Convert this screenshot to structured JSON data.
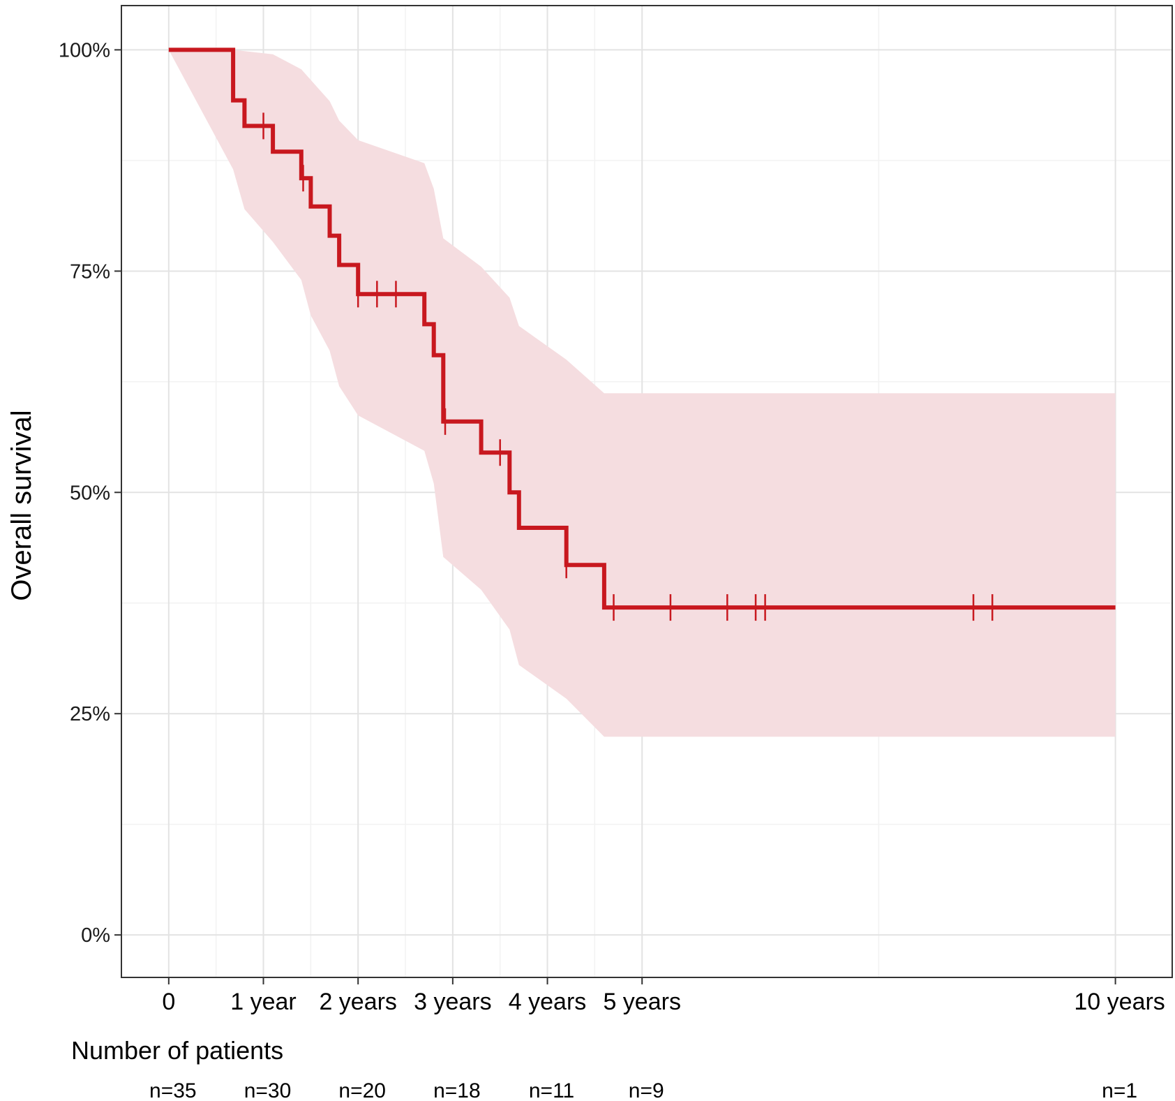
{
  "chart_data": {
    "type": "line",
    "title": "",
    "ylabel": "Overall survival",
    "xlabel": "",
    "xlim": [
      -0.5,
      10.6
    ],
    "ylim": [
      -0.048,
      1.05
    ],
    "grid": true,
    "y_ticks": [
      {
        "value": 0,
        "label": "0%"
      },
      {
        "value": 0.25,
        "label": "25%"
      },
      {
        "value": 0.5,
        "label": "50%"
      },
      {
        "value": 0.75,
        "label": "75%"
      },
      {
        "value": 1,
        "label": "100%"
      }
    ],
    "y_minor_ticks": [
      0.125,
      0.375,
      0.625,
      0.875
    ],
    "x_ticks": [
      {
        "value": 0,
        "label": "0"
      },
      {
        "value": 1,
        "label": "1 year"
      },
      {
        "value": 2,
        "label": "2 years"
      },
      {
        "value": 3,
        "label": "3 years"
      },
      {
        "value": 4,
        "label": "4 years"
      },
      {
        "value": 5,
        "label": "5 years"
      },
      {
        "value": 10,
        "label": "10 years"
      }
    ],
    "x_minor_ticks": [
      0.5,
      1.5,
      2.5,
      3.5,
      4.5,
      7.5
    ],
    "series": [
      {
        "color": "#c8181f",
        "band_color": "#f5dde0",
        "steps": [
          {
            "x": 0,
            "y": 1.0
          },
          {
            "x": 0.68,
            "y": 0.943
          },
          {
            "x": 0.8,
            "y": 0.914
          },
          {
            "x": 1.1,
            "y": 0.885
          },
          {
            "x": 1.4,
            "y": 0.855
          },
          {
            "x": 1.5,
            "y": 0.823
          },
          {
            "x": 1.7,
            "y": 0.79
          },
          {
            "x": 1.8,
            "y": 0.757
          },
          {
            "x": 2.0,
            "y": 0.724
          },
          {
            "x": 2.7,
            "y": 0.69
          },
          {
            "x": 2.8,
            "y": 0.655
          },
          {
            "x": 2.9,
            "y": 0.58
          },
          {
            "x": 3.3,
            "y": 0.545
          },
          {
            "x": 3.6,
            "y": 0.5
          },
          {
            "x": 3.7,
            "y": 0.46
          },
          {
            "x": 4.2,
            "y": 0.418
          },
          {
            "x": 4.6,
            "y": 0.37
          }
        ],
        "end_x": 10,
        "censored": [
          {
            "x": 1.0,
            "y": 0.914
          },
          {
            "x": 1.42,
            "y": 0.855
          },
          {
            "x": 2.0,
            "y": 0.724
          },
          {
            "x": 2.2,
            "y": 0.724
          },
          {
            "x": 2.4,
            "y": 0.724
          },
          {
            "x": 2.92,
            "y": 0.58
          },
          {
            "x": 3.5,
            "y": 0.545
          },
          {
            "x": 4.2,
            "y": 0.418
          },
          {
            "x": 4.7,
            "y": 0.37
          },
          {
            "x": 5.3,
            "y": 0.37
          },
          {
            "x": 5.9,
            "y": 0.37
          },
          {
            "x": 6.2,
            "y": 0.37
          },
          {
            "x": 6.3,
            "y": 0.37
          },
          {
            "x": 8.5,
            "y": 0.37
          },
          {
            "x": 8.7,
            "y": 0.37
          }
        ],
        "ci_upper": [
          {
            "x": 0,
            "y": 1.0
          },
          {
            "x": 0.68,
            "y": 1.0
          },
          {
            "x": 1.1,
            "y": 0.995
          },
          {
            "x": 1.4,
            "y": 0.978
          },
          {
            "x": 1.7,
            "y": 0.942
          },
          {
            "x": 1.8,
            "y": 0.92
          },
          {
            "x": 2.0,
            "y": 0.898
          },
          {
            "x": 2.7,
            "y": 0.872
          },
          {
            "x": 2.8,
            "y": 0.843
          },
          {
            "x": 2.9,
            "y": 0.787
          },
          {
            "x": 3.3,
            "y": 0.755
          },
          {
            "x": 3.6,
            "y": 0.72
          },
          {
            "x": 3.7,
            "y": 0.688
          },
          {
            "x": 4.2,
            "y": 0.65
          },
          {
            "x": 4.6,
            "y": 0.612
          },
          {
            "x": 10,
            "y": 0.612
          }
        ],
        "ci_lower": [
          {
            "x": 0,
            "y": 1.0
          },
          {
            "x": 0.68,
            "y": 0.865
          },
          {
            "x": 0.8,
            "y": 0.82
          },
          {
            "x": 1.1,
            "y": 0.783
          },
          {
            "x": 1.4,
            "y": 0.74
          },
          {
            "x": 1.5,
            "y": 0.7
          },
          {
            "x": 1.7,
            "y": 0.66
          },
          {
            "x": 1.8,
            "y": 0.62
          },
          {
            "x": 2.0,
            "y": 0.587
          },
          {
            "x": 2.7,
            "y": 0.547
          },
          {
            "x": 2.8,
            "y": 0.51
          },
          {
            "x": 2.9,
            "y": 0.427
          },
          {
            "x": 3.3,
            "y": 0.39
          },
          {
            "x": 3.6,
            "y": 0.345
          },
          {
            "x": 3.7,
            "y": 0.305
          },
          {
            "x": 4.2,
            "y": 0.267
          },
          {
            "x": 4.6,
            "y": 0.224
          },
          {
            "x": 10,
            "y": 0.224
          }
        ]
      }
    ],
    "risk_table": {
      "title": "Number of patients",
      "entries": [
        {
          "x": 0,
          "label": "n=35"
        },
        {
          "x": 1,
          "label": "n=30"
        },
        {
          "x": 2,
          "label": "n=20"
        },
        {
          "x": 3,
          "label": "n=18"
        },
        {
          "x": 4,
          "label": "n=11"
        },
        {
          "x": 5,
          "label": "n=9"
        },
        {
          "x": 10,
          "label": "n=1"
        }
      ]
    }
  }
}
